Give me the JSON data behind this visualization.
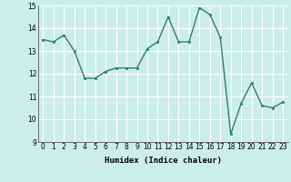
{
  "x": [
    0,
    1,
    2,
    3,
    4,
    5,
    6,
    7,
    8,
    9,
    10,
    11,
    12,
    13,
    14,
    15,
    16,
    17,
    18,
    19,
    20,
    21,
    22,
    23
  ],
  "y": [
    13.5,
    13.4,
    13.7,
    13.0,
    11.8,
    11.8,
    12.1,
    12.25,
    12.25,
    12.25,
    13.1,
    13.4,
    14.5,
    13.4,
    13.4,
    14.9,
    14.6,
    13.6,
    9.35,
    10.7,
    11.6,
    10.6,
    10.5,
    10.75
  ],
  "xlabel": "Humidex (Indice chaleur)",
  "ylabel": "",
  "ylim": [
    9,
    15
  ],
  "xlim": [
    -0.5,
    23.5
  ],
  "yticks": [
    9,
    10,
    11,
    12,
    13,
    14,
    15
  ],
  "xticks": [
    0,
    1,
    2,
    3,
    4,
    5,
    6,
    7,
    8,
    9,
    10,
    11,
    12,
    13,
    14,
    15,
    16,
    17,
    18,
    19,
    20,
    21,
    22,
    23
  ],
  "line_color": "#2e7d6e",
  "marker_color": "#2e7d6e",
  "bg_color": "#cceee8",
  "grid_color": "#ffffff",
  "marker": "s",
  "marker_size": 2.0,
  "line_width": 1.0,
  "tick_fontsize": 5.5,
  "xlabel_fontsize": 6.5
}
